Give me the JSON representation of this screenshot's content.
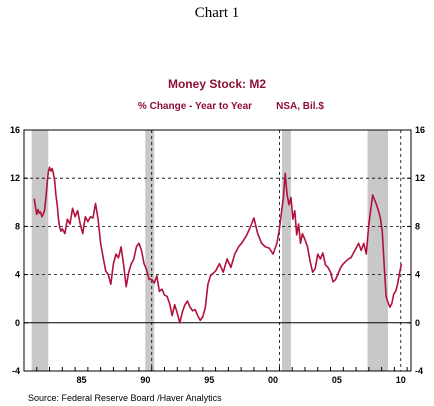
{
  "page": {
    "heading": "Chart 1"
  },
  "colors": {
    "series": "#b0123c",
    "title": "#8e1034",
    "recession": "#c8c8c8"
  },
  "chart_data": {
    "type": "line",
    "title": "Money Stock: M2",
    "subtitle": "% Change - Year to Year",
    "note": "NSA, Bil.$",
    "source": "Source:  Federal Reserve Board /Haver Analytics",
    "xlim": [
      1981.0,
      2011.3
    ],
    "ylim": [
      -4,
      16
    ],
    "yticks": [
      -4,
      0,
      4,
      8,
      12,
      16
    ],
    "ytick_labels": [
      "-4",
      "0",
      "4",
      "8",
      "12",
      "16"
    ],
    "xticks": [
      1985,
      1990,
      1995,
      2000,
      2005,
      2010
    ],
    "xtick_labels": [
      "85",
      "90",
      "95",
      "00",
      "05",
      "10"
    ],
    "grid_y": [
      4,
      8,
      12
    ],
    "zero_line": 0,
    "vlines": [
      1981.0,
      1991.0,
      2001.0,
      2010.5
    ],
    "recessions": [
      [
        1981.6,
        1982.9
      ],
      [
        1990.5,
        1991.2
      ],
      [
        2001.2,
        2001.9
      ],
      [
        2007.9,
        2009.5
      ]
    ],
    "series": [
      {
        "x": [
          1981.8,
          1981.9,
          1982.0,
          1982.1,
          1982.2,
          1982.3,
          1982.4,
          1982.5,
          1982.6,
          1982.7,
          1982.8,
          1982.9,
          1983.0,
          1983.1,
          1983.2,
          1983.3,
          1983.4,
          1983.5,
          1983.6,
          1983.7,
          1983.8,
          1983.9,
          1984.0,
          1984.2,
          1984.4,
          1984.6,
          1984.8,
          1985.0,
          1985.2,
          1985.4,
          1985.6,
          1985.8,
          1986.0,
          1986.2,
          1986.4,
          1986.6,
          1986.8,
          1987.0,
          1987.2,
          1987.4,
          1987.6,
          1987.8,
          1988.0,
          1988.2,
          1988.4,
          1988.6,
          1988.8,
          1989.0,
          1989.2,
          1989.4,
          1989.6,
          1989.8,
          1990.0,
          1990.2,
          1990.4,
          1990.6,
          1990.8,
          1991.0,
          1991.2,
          1991.4,
          1991.6,
          1991.8,
          1992.0,
          1992.2,
          1992.4,
          1992.6,
          1992.8,
          1993.0,
          1993.2,
          1993.4,
          1993.6,
          1993.8,
          1994.0,
          1994.2,
          1994.4,
          1994.6,
          1994.8,
          1995.0,
          1995.2,
          1995.4,
          1995.6,
          1995.8,
          1996.0,
          1996.3,
          1996.6,
          1996.9,
          1997.2,
          1997.5,
          1997.8,
          1998.1,
          1998.4,
          1998.7,
          1999.0,
          1999.3,
          1999.6,
          1999.9,
          2000.2,
          2000.5,
          2000.8,
          2001.0,
          2001.15,
          2001.3,
          2001.45,
          2001.6,
          2001.75,
          2001.9,
          2002.05,
          2002.2,
          2002.35,
          2002.5,
          2002.65,
          2002.8,
          2003.0,
          2003.2,
          2003.4,
          2003.6,
          2003.8,
          2004.0,
          2004.2,
          2004.4,
          2004.6,
          2004.8,
          2005.0,
          2005.2,
          2005.4,
          2005.6,
          2005.8,
          2006.0,
          2006.2,
          2006.4,
          2006.6,
          2006.8,
          2007.0,
          2007.2,
          2007.4,
          2007.6,
          2007.8,
          2008.0,
          2008.15,
          2008.3,
          2008.45,
          2008.6,
          2008.75,
          2008.9,
          2009.05,
          2009.2,
          2009.35,
          2009.5,
          2009.65,
          2009.8,
          2009.95,
          2010.1,
          2010.25,
          2010.4,
          2010.55
        ],
        "y": [
          10.3,
          9.6,
          9.0,
          9.4,
          9.1,
          9.2,
          8.8,
          9.0,
          9.3,
          10.2,
          11.4,
          12.5,
          12.9,
          12.6,
          12.8,
          12.4,
          11.8,
          10.6,
          9.8,
          8.6,
          7.9,
          7.6,
          7.8,
          7.4,
          8.6,
          8.2,
          9.5,
          8.8,
          9.3,
          8.2,
          7.4,
          8.8,
          8.4,
          8.8,
          8.7,
          9.9,
          8.6,
          6.6,
          5.4,
          4.3,
          4.0,
          3.2,
          4.9,
          5.7,
          5.4,
          6.3,
          4.8,
          3.0,
          4.2,
          4.9,
          5.3,
          6.3,
          6.6,
          6.0,
          4.9,
          4.4,
          3.6,
          3.6,
          3.3,
          3.9,
          2.6,
          2.8,
          2.3,
          2.2,
          1.6,
          0.6,
          1.5,
          0.8,
          0.0,
          0.9,
          1.5,
          1.8,
          1.3,
          1.0,
          1.1,
          0.6,
          0.2,
          0.5,
          1.3,
          3.2,
          3.9,
          4.1,
          4.3,
          4.9,
          4.2,
          5.3,
          4.6,
          5.7,
          6.3,
          6.7,
          7.2,
          7.9,
          8.7,
          7.4,
          6.6,
          6.3,
          6.2,
          5.7,
          6.6,
          7.8,
          9.1,
          10.3,
          12.4,
          10.6,
          9.8,
          10.4,
          8.6,
          9.3,
          7.3,
          8.2,
          6.6,
          7.4,
          6.9,
          6.3,
          5.1,
          4.2,
          4.5,
          5.7,
          5.3,
          5.8,
          4.8,
          4.6,
          4.2,
          3.4,
          3.6,
          4.1,
          4.6,
          4.9,
          5.1,
          5.3,
          5.4,
          5.8,
          6.2,
          6.6,
          6.0,
          6.6,
          5.7,
          8.2,
          9.4,
          10.6,
          10.2,
          9.8,
          9.3,
          8.7,
          7.6,
          4.8,
          2.2,
          1.7,
          1.3,
          1.6,
          2.4,
          2.6,
          3.2,
          4.1,
          4.9
        ]
      }
    ]
  }
}
